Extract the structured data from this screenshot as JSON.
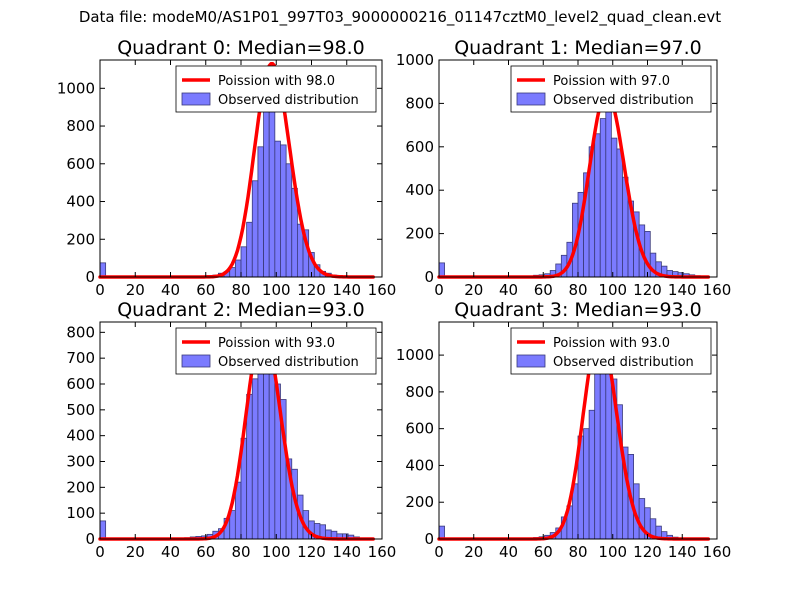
{
  "figure": {
    "suptitle": "Data file: modeM0/AS1P01_997T03_9000000216_01147cztM0_level2_quad_clean.evt"
  },
  "colors": {
    "hist_fill": "#7b7bff",
    "hist_edge": "#3a3a7a",
    "curve": "#ff0000",
    "axis": "#000000"
  },
  "chart_data": [
    {
      "type": "bar",
      "title": "Quadrant 0: Median=98.0",
      "xlim": [
        0,
        160
      ],
      "ylim": [
        0,
        1150
      ],
      "xticks": [
        0,
        20,
        40,
        60,
        80,
        100,
        120,
        140,
        160
      ],
      "yticks": [
        0,
        200,
        400,
        600,
        800,
        1000
      ],
      "legend": {
        "position": "top-right",
        "entries": [
          "Poission with 98.0",
          "Observed distribution"
        ]
      },
      "poisson_mean": 98.0,
      "poisson_peak": 1130,
      "bin_width": 3.2,
      "histogram": {
        "x": [
          0,
          3.2,
          51.2,
          54.4,
          57.6,
          60.8,
          64,
          67.2,
          70.4,
          73.6,
          76.8,
          80,
          83.2,
          86.4,
          89.6,
          92.8,
          96,
          99.2,
          102.4,
          105.6,
          108.8,
          112,
          115.2,
          118.4,
          121.6,
          124.8,
          128,
          131.2,
          134.4,
          137.6,
          140.8,
          144,
          147.2,
          150.4
        ],
        "y": [
          75,
          2,
          5,
          4,
          6,
          8,
          10,
          20,
          28,
          50,
          90,
          160,
          290,
          510,
          690,
          900,
          1080,
          720,
          700,
          600,
          470,
          280,
          250,
          130,
          65,
          30,
          20,
          10,
          8,
          5,
          5,
          4,
          3,
          2
        ]
      }
    },
    {
      "type": "bar",
      "title": "Quadrant 1: Median=97.0",
      "xlim": [
        0,
        160
      ],
      "ylim": [
        0,
        1000
      ],
      "xticks": [
        0,
        20,
        40,
        60,
        80,
        100,
        120,
        140,
        160
      ],
      "yticks": [
        0,
        200,
        400,
        600,
        800,
        1000
      ],
      "legend": {
        "position": "top-right",
        "entries": [
          "Poission with 97.0",
          "Observed distribution"
        ]
      },
      "poisson_mean": 97.0,
      "poisson_peak": 850,
      "bin_width": 3.2,
      "histogram": {
        "x": [
          0,
          3.2,
          54.4,
          57.6,
          60.8,
          64,
          67.2,
          70.4,
          73.6,
          76.8,
          80,
          83.2,
          86.4,
          89.6,
          92.8,
          96,
          99.2,
          102.4,
          105.6,
          108.8,
          112,
          115.2,
          118.4,
          121.6,
          124.8,
          128,
          131.2,
          134.4,
          137.6,
          140.8,
          144,
          147.2,
          150.4
        ],
        "y": [
          65,
          2,
          8,
          10,
          15,
          30,
          60,
          100,
          160,
          340,
          390,
          480,
          600,
          660,
          730,
          800,
          640,
          590,
          460,
          350,
          300,
          240,
          210,
          110,
          70,
          50,
          30,
          25,
          20,
          15,
          10,
          6,
          4
        ]
      }
    },
    {
      "type": "bar",
      "title": "Quadrant 2: Median=93.0",
      "xlim": [
        0,
        160
      ],
      "ylim": [
        0,
        840
      ],
      "xticks": [
        0,
        20,
        40,
        60,
        80,
        100,
        120,
        140,
        160
      ],
      "yticks": [
        0,
        100,
        200,
        300,
        400,
        500,
        600,
        700,
        800
      ],
      "legend": {
        "position": "top-right",
        "entries": [
          "Poission with 93.0",
          "Observed distribution"
        ]
      },
      "poisson_mean": 93.0,
      "poisson_peak": 810,
      "bin_width": 3.2,
      "histogram": {
        "x": [
          0,
          3.2,
          48,
          51.2,
          54.4,
          57.6,
          60.8,
          64,
          67.2,
          70.4,
          73.6,
          76.8,
          80,
          83.2,
          86.4,
          89.6,
          92.8,
          96,
          99.2,
          102.4,
          105.6,
          108.8,
          112,
          115.2,
          118.4,
          121.6,
          124.8,
          128,
          131.2,
          134.4,
          137.6,
          140.8,
          144,
          147.2,
          150.4
        ],
        "y": [
          70,
          2,
          5,
          8,
          10,
          12,
          18,
          30,
          40,
          80,
          110,
          220,
          390,
          560,
          620,
          700,
          810,
          740,
          600,
          540,
          310,
          270,
          170,
          110,
          70,
          60,
          55,
          35,
          30,
          20,
          20,
          15,
          8,
          4,
          2
        ]
      }
    },
    {
      "type": "bar",
      "title": "Quadrant 3: Median=93.0",
      "xlim": [
        0,
        160
      ],
      "ylim": [
        0,
        1180
      ],
      "xticks": [
        0,
        20,
        40,
        60,
        80,
        100,
        120,
        140,
        160
      ],
      "yticks": [
        0,
        200,
        400,
        600,
        800,
        1000
      ],
      "legend": {
        "position": "top-right",
        "entries": [
          "Poission with 93.0",
          "Observed distribution"
        ]
      },
      "poisson_mean": 93.0,
      "poisson_peak": 1120,
      "bin_width": 3.2,
      "histogram": {
        "x": [
          0,
          3.2,
          51.2,
          54.4,
          57.6,
          60.8,
          64,
          67.2,
          70.4,
          73.6,
          76.8,
          80,
          83.2,
          86.4,
          89.6,
          92.8,
          96,
          99.2,
          102.4,
          105.6,
          108.8,
          112,
          115.2,
          118.4,
          121.6,
          124.8,
          128,
          131.2,
          134.4,
          137.6,
          140.8
        ],
        "y": [
          70,
          2,
          6,
          8,
          12,
          20,
          35,
          60,
          120,
          180,
          300,
          560,
          600,
          700,
          920,
          980,
          1050,
          870,
          730,
          500,
          460,
          300,
          220,
          170,
          110,
          70,
          40,
          20,
          10,
          5,
          3
        ]
      }
    }
  ]
}
